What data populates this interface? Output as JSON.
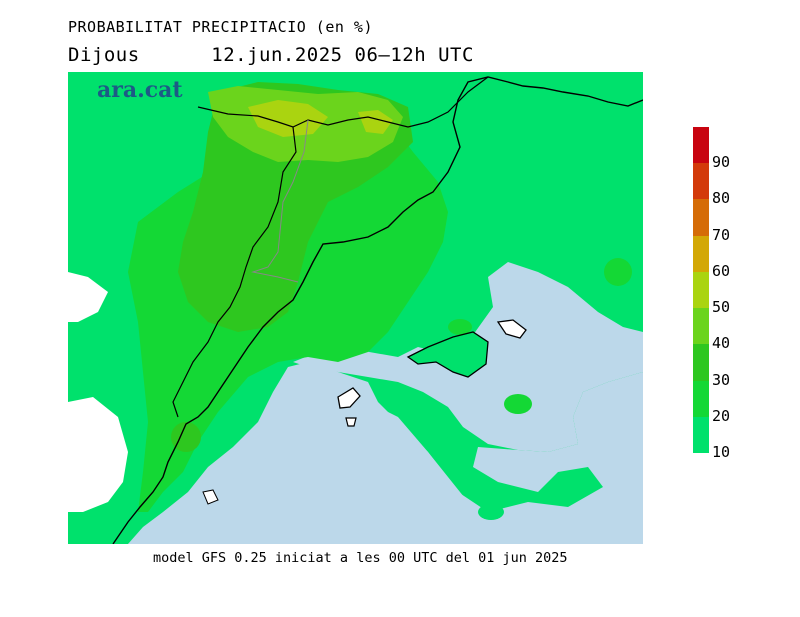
{
  "header": {
    "title": "PROBABILITAT PRECIPITACIO (en %)",
    "day": "Dijous",
    "datetime": "12.jun.2025 06–12h UTC"
  },
  "brand": "ara.cat",
  "footer": "model GFS 0.25 iniciat a les 00 UTC del 01 jun 2025",
  "legend": {
    "segments": [
      {
        "from": 90,
        "to": 100,
        "color": "#c80410"
      },
      {
        "from": 80,
        "to": 90,
        "color": "#d33a0a"
      },
      {
        "from": 70,
        "to": 80,
        "color": "#d56c07"
      },
      {
        "from": 60,
        "to": 70,
        "color": "#d3a806"
      },
      {
        "from": 50,
        "to": 60,
        "color": "#aad410"
      },
      {
        "from": 40,
        "to": 50,
        "color": "#6bd41c"
      },
      {
        "from": 30,
        "to": 40,
        "color": "#2ec71f"
      },
      {
        "from": 20,
        "to": 30,
        "color": "#14d835"
      },
      {
        "from": 10,
        "to": 20,
        "color": "#00e16c"
      }
    ],
    "ticks": [
      "90",
      "80",
      "70",
      "60",
      "50",
      "40",
      "30",
      "20",
      "10"
    ]
  },
  "colors": {
    "sea": "#bcd8ea",
    "white": "#ffffff",
    "c10": "#00e16c",
    "c20": "#14d835",
    "c30": "#2ec71f",
    "c40": "#6bd41c",
    "c50": "#aad410"
  }
}
